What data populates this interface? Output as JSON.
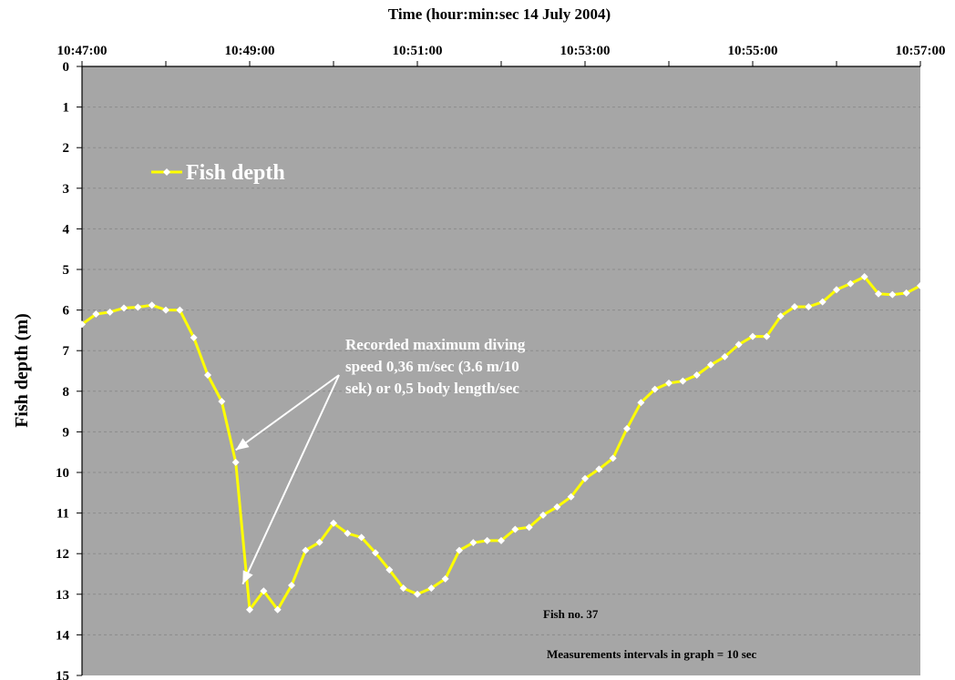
{
  "chart_data": {
    "type": "line",
    "title": "Time (hour:min:sec  14 July 2004)",
    "ylabel": "Fish depth (m)",
    "xlabel": "",
    "x_tick_labels": [
      "10:47:00",
      "10:49:00",
      "10:51:00",
      "10:53:00",
      "10:55:00",
      "10:57:00"
    ],
    "x_range": [
      "10:47:00",
      "10:57:00"
    ],
    "ylim": [
      0,
      15
    ],
    "y_inverted": true,
    "y_ticks": [
      "0",
      "1",
      "2",
      "3",
      "4",
      "5",
      "6",
      "7",
      "8",
      "9",
      "10",
      "11",
      "12",
      "13",
      "14",
      "15"
    ],
    "grid": "horizontal dashed",
    "plot_background": "#a6a6a6",
    "x_axis_position": "top",
    "legend_placement": "upper-left inside plot",
    "series": [
      {
        "name": "Fish depth",
        "color": "#ffff00",
        "marker_color": "#ffffff",
        "x": [
          "10:47:00",
          "10:47:10",
          "10:47:20",
          "10:47:30",
          "10:47:40",
          "10:47:50",
          "10:48:00",
          "10:48:10",
          "10:48:20",
          "10:48:30",
          "10:48:40",
          "10:48:50",
          "10:49:00",
          "10:49:10",
          "10:49:20",
          "10:49:30",
          "10:49:40",
          "10:49:50",
          "10:50:00",
          "10:50:10",
          "10:50:20",
          "10:50:30",
          "10:50:40",
          "10:50:50",
          "10:51:00",
          "10:51:10",
          "10:51:20",
          "10:51:30",
          "10:51:40",
          "10:51:50",
          "10:52:00",
          "10:52:10",
          "10:52:20",
          "10:52:30",
          "10:52:40",
          "10:52:50",
          "10:53:00",
          "10:53:10",
          "10:53:20",
          "10:53:30",
          "10:53:40",
          "10:53:50",
          "10:54:00",
          "10:54:10",
          "10:54:20",
          "10:54:30",
          "10:54:40",
          "10:54:50",
          "10:55:00",
          "10:55:10",
          "10:55:20",
          "10:55:30",
          "10:55:40",
          "10:55:50",
          "10:56:00",
          "10:56:10",
          "10:56:20",
          "10:56:30",
          "10:56:40",
          "10:56:50",
          "10:57:00"
        ],
        "values": [
          6.35,
          6.1,
          6.05,
          5.95,
          5.93,
          5.88,
          6.0,
          6.0,
          6.68,
          7.6,
          8.25,
          9.75,
          13.38,
          12.92,
          13.38,
          12.78,
          11.92,
          11.72,
          11.25,
          11.5,
          11.6,
          11.98,
          12.4,
          12.85,
          13.0,
          12.85,
          12.62,
          11.92,
          11.73,
          11.68,
          11.68,
          11.4,
          11.35,
          11.05,
          10.85,
          10.6,
          10.15,
          9.92,
          9.65,
          8.92,
          8.28,
          7.95,
          7.8,
          7.75,
          7.6,
          7.35,
          7.15,
          6.85,
          6.65,
          6.65,
          6.15,
          5.92,
          5.92,
          5.8,
          5.5,
          5.35,
          5.18,
          5.6,
          5.62,
          5.58,
          5.4
        ]
      }
    ],
    "annotations": [
      {
        "text_lines": [
          "Recorded maximum diving",
          "speed 0,36 m/sec (3.6 m/10",
          "sek) or 0,5 body length/sec"
        ],
        "arrow_targets": [
          {
            "x": "10:48:50",
            "y": 9.45
          },
          {
            "x": "10:48:55",
            "y": 12.75
          }
        ]
      },
      {
        "text_lines": [
          "Fish no. 37"
        ]
      },
      {
        "text_lines": [
          "Measurements intervals in graph  = 10 sec"
        ]
      }
    ]
  }
}
